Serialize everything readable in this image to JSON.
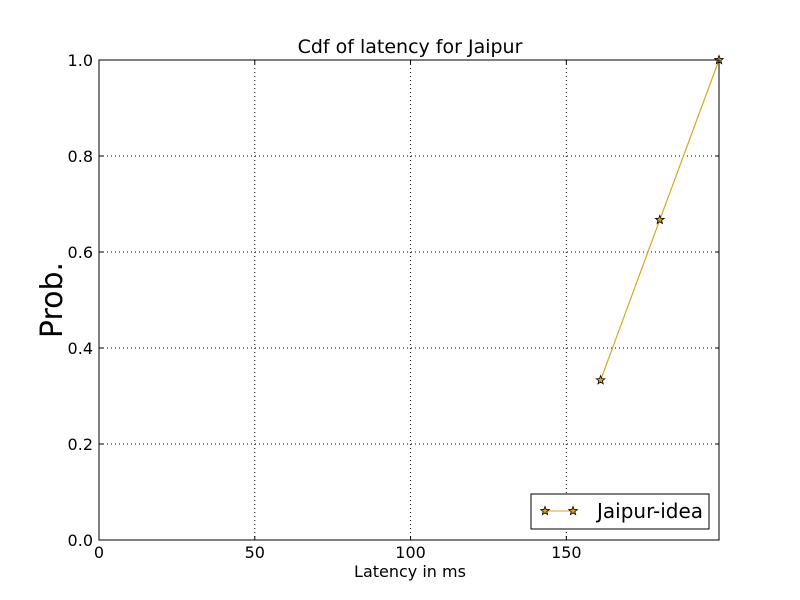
{
  "chart_data": {
    "type": "line",
    "title": "Cdf of latency for Jaipur",
    "xlabel": "Latency in ms",
    "ylabel": "Prob.",
    "xlim": [
      0,
      199
    ],
    "ylim": [
      0,
      1.0
    ],
    "x_ticks": [
      0,
      50,
      100,
      150
    ],
    "x_tick_labels": [
      "0",
      "50",
      "100",
      "150"
    ],
    "y_ticks": [
      0,
      0.2,
      0.4,
      0.6,
      0.8,
      1.0
    ],
    "y_tick_labels": [
      "0.0",
      "0.2",
      "0.4",
      "0.6",
      "0.8",
      "1.0"
    ],
    "grid": true,
    "legend_position": "lower-right",
    "series": [
      {
        "name": "Jaipur-idea",
        "color": "#DAA520",
        "marker": "star",
        "x": [
          161,
          180,
          199
        ],
        "y": [
          0.333,
          0.667,
          1.0
        ]
      }
    ]
  }
}
